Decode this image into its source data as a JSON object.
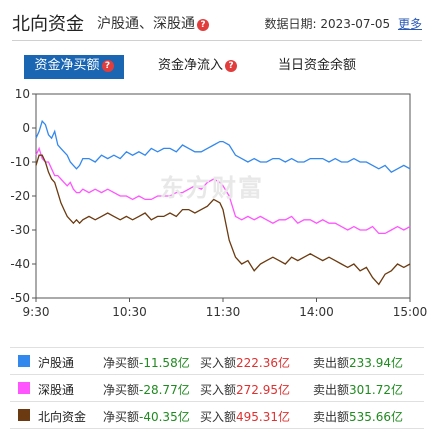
{
  "header": {
    "title": "北向资金",
    "subtitle": "沪股通、深股通",
    "date_label": "数据日期:",
    "date": "2023-07-05",
    "more": "更多"
  },
  "tabs": [
    {
      "label": "资金净买额",
      "active": true
    },
    {
      "label": "资金净流入",
      "active": false
    },
    {
      "label": "当日资金余额",
      "active": false
    }
  ],
  "watermark": "东方财富",
  "colors": {
    "sh": "#3388ee",
    "sz": "#ff55ff",
    "north": "#6b3a10",
    "accent": "#1a66b3"
  },
  "chart_data": {
    "type": "line",
    "title": "",
    "xlabel": "",
    "ylabel": "",
    "ylim": [
      -50,
      10
    ],
    "yticks": [
      10,
      0,
      -10,
      -20,
      -30,
      -40,
      -50
    ],
    "xticks": [
      "9:30",
      "10:30",
      "11:30",
      "14:00",
      "15:00"
    ],
    "xtick_minutes": [
      0,
      60,
      120,
      180,
      240
    ],
    "grid": false,
    "series": [
      {
        "name": "沪股通",
        "color": "#3388ee",
        "x": [
          0,
          2,
          4,
          6,
          8,
          10,
          12,
          14,
          16,
          18,
          20,
          22,
          24,
          26,
          28,
          30,
          34,
          38,
          42,
          46,
          50,
          54,
          58,
          62,
          66,
          70,
          74,
          78,
          82,
          86,
          90,
          94,
          98,
          102,
          106,
          110,
          114,
          118,
          120,
          124,
          128,
          132,
          136,
          140,
          144,
          148,
          152,
          156,
          160,
          164,
          168,
          172,
          176,
          180,
          184,
          188,
          192,
          196,
          200,
          204,
          208,
          212,
          216,
          220,
          224,
          228,
          232,
          236,
          240
        ],
        "y": [
          -3,
          -1,
          2,
          1,
          -2,
          -3,
          -1,
          -5,
          -6,
          -7,
          -8,
          -10,
          -11,
          -12,
          -11,
          -9,
          -9,
          -10,
          -8,
          -9,
          -8,
          -9,
          -7,
          -8,
          -7,
          -8,
          -6,
          -7,
          -6,
          -6,
          -7,
          -5,
          -6,
          -7,
          -7,
          -6,
          -5,
          -4,
          -4,
          -5,
          -8,
          -9,
          -10,
          -9,
          -10,
          -10,
          -9,
          -9,
          -10,
          -9,
          -10,
          -10,
          -9,
          -9,
          -9,
          -10,
          -9,
          -10,
          -10,
          -9,
          -10,
          -10,
          -11,
          -12,
          -11,
          -13,
          -12,
          -11,
          -12
        ]
      },
      {
        "name": "深股通",
        "color": "#ff55ff",
        "x": [
          0,
          2,
          4,
          6,
          8,
          10,
          12,
          14,
          16,
          18,
          20,
          22,
          24,
          26,
          28,
          30,
          34,
          38,
          42,
          46,
          50,
          54,
          58,
          62,
          66,
          70,
          74,
          78,
          82,
          86,
          90,
          94,
          98,
          102,
          106,
          110,
          114,
          118,
          120,
          124,
          128,
          132,
          136,
          140,
          144,
          148,
          152,
          156,
          160,
          164,
          168,
          172,
          176,
          180,
          184,
          188,
          192,
          196,
          200,
          204,
          208,
          212,
          216,
          220,
          224,
          228,
          232,
          236,
          240
        ],
        "y": [
          -8,
          -6,
          -9,
          -10,
          -10,
          -12,
          -14,
          -14,
          -15,
          -16,
          -17,
          -16,
          -18,
          -19,
          -19,
          -18,
          -19,
          -18,
          -19,
          -18,
          -19,
          -20,
          -20,
          -21,
          -20,
          -21,
          -21,
          -20,
          -20,
          -20,
          -19,
          -19,
          -18,
          -17,
          -18,
          -16,
          -15,
          -16,
          -17,
          -20,
          -26,
          -27,
          -26,
          -27,
          -26,
          -27,
          -28,
          -27,
          -27,
          -26,
          -28,
          -27,
          -27,
          -28,
          -27,
          -28,
          -28,
          -29,
          -30,
          -29,
          -30,
          -30,
          -29,
          -31,
          -31,
          -30,
          -29,
          -30,
          -29
        ]
      },
      {
        "name": "北向资金",
        "color": "#6b3a10",
        "x": [
          0,
          2,
          4,
          6,
          8,
          10,
          12,
          14,
          16,
          18,
          20,
          22,
          24,
          26,
          28,
          30,
          34,
          38,
          42,
          46,
          50,
          54,
          58,
          62,
          66,
          70,
          74,
          78,
          82,
          86,
          90,
          94,
          98,
          102,
          106,
          110,
          114,
          118,
          120,
          124,
          128,
          132,
          136,
          140,
          144,
          148,
          152,
          156,
          160,
          164,
          168,
          172,
          176,
          180,
          184,
          188,
          192,
          196,
          200,
          204,
          208,
          212,
          216,
          220,
          224,
          228,
          232,
          236,
          240
        ],
        "y": [
          -11,
          -8,
          -8,
          -10,
          -13,
          -15,
          -16,
          -19,
          -22,
          -24,
          -26,
          -27,
          -28,
          -27,
          -28,
          -27,
          -26,
          -27,
          -26,
          -25,
          -26,
          -27,
          -26,
          -27,
          -26,
          -25,
          -27,
          -26,
          -26,
          -25,
          -26,
          -24,
          -24,
          -25,
          -24,
          -23,
          -21,
          -22,
          -24,
          -33,
          -38,
          -40,
          -39,
          -42,
          -40,
          -39,
          -38,
          -39,
          -40,
          -38,
          -39,
          -38,
          -37,
          -38,
          -39,
          -38,
          -39,
          -40,
          -41,
          -40,
          -42,
          -41,
          -44,
          -46,
          -43,
          -42,
          -40,
          -41,
          -40
        ]
      }
    ]
  },
  "legend": [
    {
      "name": "沪股通",
      "color": "#3388ee",
      "net_label": "净买额",
      "net": "-11.58亿",
      "buy_label": "买入额",
      "buy": "222.36亿",
      "sell_label": "卖出额",
      "sell": "233.94亿"
    },
    {
      "name": "深股通",
      "color": "#ff55ff",
      "net_label": "净买额",
      "net": "-28.77亿",
      "buy_label": "买入额",
      "buy": "272.95亿",
      "sell_label": "卖出额",
      "sell": "301.72亿"
    },
    {
      "name": "北向资金",
      "color": "#6b3a10",
      "net_label": "净买额",
      "net": "-40.35亿",
      "buy_label": "买入额",
      "buy": "495.31亿",
      "sell_label": "卖出额",
      "sell": "535.66亿"
    }
  ]
}
